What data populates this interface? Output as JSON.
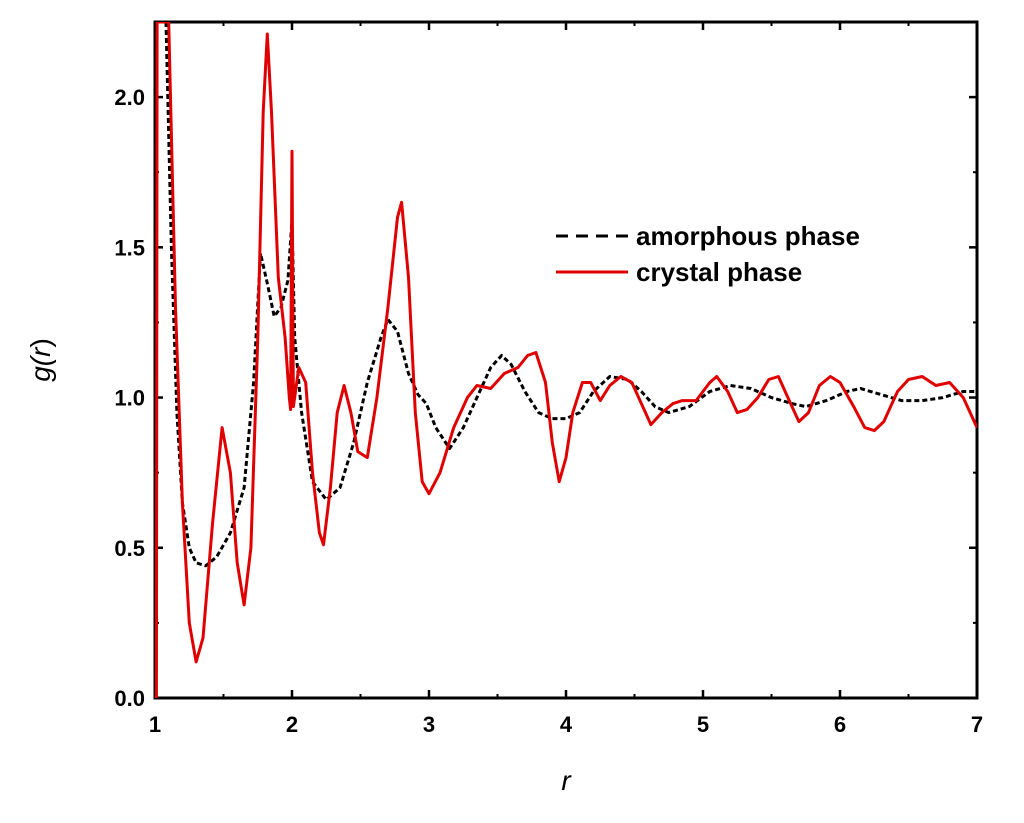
{
  "chart_data": {
    "type": "line",
    "title": "",
    "xlabel": "r",
    "ylabel": "g(r)",
    "xlim": [
      1,
      7
    ],
    "ylim": [
      0,
      2.25
    ],
    "x_ticks": [
      1,
      2,
      3,
      4,
      5,
      6,
      7
    ],
    "y_ticks": [
      0.0,
      0.5,
      1.0,
      1.5,
      2.0
    ],
    "x_tick_labels": [
      "1",
      "2",
      "3",
      "4",
      "5",
      "6",
      "7"
    ],
    "y_tick_labels": [
      "0.0",
      "0.5",
      "1.0",
      "1.5",
      "2.0"
    ],
    "grid": false,
    "legend_position": "center-right",
    "series": [
      {
        "name": "amorphous phase",
        "color": "#000000",
        "style": "dashed",
        "points": [
          [
            1.08,
            2.25
          ],
          [
            1.12,
            1.5
          ],
          [
            1.16,
            0.95
          ],
          [
            1.2,
            0.65
          ],
          [
            1.25,
            0.5
          ],
          [
            1.3,
            0.45
          ],
          [
            1.37,
            0.44
          ],
          [
            1.45,
            0.47
          ],
          [
            1.55,
            0.55
          ],
          [
            1.65,
            0.7
          ],
          [
            1.72,
            1.05
          ],
          [
            1.77,
            1.48
          ],
          [
            1.82,
            1.38
          ],
          [
            1.87,
            1.27
          ],
          [
            1.92,
            1.3
          ],
          [
            1.97,
            1.39
          ],
          [
            2.0,
            1.59
          ],
          [
            2.02,
            1.2
          ],
          [
            2.07,
            0.95
          ],
          [
            2.15,
            0.72
          ],
          [
            2.25,
            0.66
          ],
          [
            2.35,
            0.7
          ],
          [
            2.45,
            0.85
          ],
          [
            2.55,
            1.05
          ],
          [
            2.65,
            1.2
          ],
          [
            2.7,
            1.26
          ],
          [
            2.77,
            1.22
          ],
          [
            2.85,
            1.08
          ],
          [
            2.92,
            1.01
          ],
          [
            2.98,
            0.98
          ],
          [
            3.05,
            0.9
          ],
          [
            3.15,
            0.83
          ],
          [
            3.25,
            0.9
          ],
          [
            3.35,
            1.0
          ],
          [
            3.45,
            1.1
          ],
          [
            3.53,
            1.14
          ],
          [
            3.6,
            1.11
          ],
          [
            3.7,
            1.02
          ],
          [
            3.8,
            0.95
          ],
          [
            3.9,
            0.93
          ],
          [
            4.0,
            0.93
          ],
          [
            4.1,
            0.95
          ],
          [
            4.2,
            1.02
          ],
          [
            4.32,
            1.07
          ],
          [
            4.45,
            1.06
          ],
          [
            4.55,
            1.02
          ],
          [
            4.65,
            0.97
          ],
          [
            4.75,
            0.95
          ],
          [
            4.9,
            0.97
          ],
          [
            5.05,
            1.02
          ],
          [
            5.2,
            1.04
          ],
          [
            5.35,
            1.03
          ],
          [
            5.5,
            1.0
          ],
          [
            5.65,
            0.98
          ],
          [
            5.75,
            0.97
          ],
          [
            5.9,
            0.99
          ],
          [
            6.05,
            1.02
          ],
          [
            6.15,
            1.03
          ],
          [
            6.3,
            1.01
          ],
          [
            6.45,
            0.99
          ],
          [
            6.6,
            0.99
          ],
          [
            6.75,
            1.0
          ],
          [
            6.9,
            1.02
          ],
          [
            7.0,
            1.02
          ]
        ]
      },
      {
        "name": "crystal phase",
        "color": "#e00000",
        "style": "solid",
        "points": [
          [
            1.01,
            0.0
          ],
          [
            1.015,
            2.25
          ],
          [
            1.1,
            2.25
          ],
          [
            1.15,
            1.3
          ],
          [
            1.2,
            0.65
          ],
          [
            1.25,
            0.25
          ],
          [
            1.3,
            0.12
          ],
          [
            1.35,
            0.2
          ],
          [
            1.42,
            0.58
          ],
          [
            1.49,
            0.9
          ],
          [
            1.55,
            0.75
          ],
          [
            1.6,
            0.45
          ],
          [
            1.65,
            0.31
          ],
          [
            1.7,
            0.5
          ],
          [
            1.75,
            1.2
          ],
          [
            1.79,
            1.95
          ],
          [
            1.82,
            2.21
          ],
          [
            1.85,
            1.95
          ],
          [
            1.9,
            1.4
          ],
          [
            1.95,
            1.2
          ],
          [
            1.98,
            1.0
          ],
          [
            1.99,
            0.96
          ],
          [
            2.0,
            1.82
          ],
          [
            2.01,
            0.97
          ],
          [
            2.05,
            1.1
          ],
          [
            2.1,
            1.05
          ],
          [
            2.15,
            0.75
          ],
          [
            2.2,
            0.55
          ],
          [
            2.23,
            0.51
          ],
          [
            2.28,
            0.7
          ],
          [
            2.33,
            0.95
          ],
          [
            2.38,
            1.04
          ],
          [
            2.43,
            0.95
          ],
          [
            2.48,
            0.82
          ],
          [
            2.55,
            0.8
          ],
          [
            2.62,
            1.0
          ],
          [
            2.7,
            1.3
          ],
          [
            2.77,
            1.6
          ],
          [
            2.8,
            1.65
          ],
          [
            2.85,
            1.4
          ],
          [
            2.9,
            0.95
          ],
          [
            2.95,
            0.72
          ],
          [
            3.0,
            0.68
          ],
          [
            3.08,
            0.75
          ],
          [
            3.18,
            0.9
          ],
          [
            3.28,
            1.0
          ],
          [
            3.35,
            1.04
          ],
          [
            3.45,
            1.03
          ],
          [
            3.55,
            1.08
          ],
          [
            3.65,
            1.1
          ],
          [
            3.72,
            1.14
          ],
          [
            3.78,
            1.15
          ],
          [
            3.85,
            1.05
          ],
          [
            3.9,
            0.85
          ],
          [
            3.95,
            0.72
          ],
          [
            4.0,
            0.8
          ],
          [
            4.05,
            0.95
          ],
          [
            4.12,
            1.05
          ],
          [
            4.18,
            1.05
          ],
          [
            4.25,
            0.99
          ],
          [
            4.32,
            1.04
          ],
          [
            4.4,
            1.07
          ],
          [
            4.48,
            1.05
          ],
          [
            4.55,
            0.98
          ],
          [
            4.62,
            0.91
          ],
          [
            4.7,
            0.95
          ],
          [
            4.78,
            0.98
          ],
          [
            4.85,
            0.99
          ],
          [
            4.95,
            0.99
          ],
          [
            5.05,
            1.05
          ],
          [
            5.1,
            1.07
          ],
          [
            5.18,
            1.02
          ],
          [
            5.25,
            0.95
          ],
          [
            5.32,
            0.96
          ],
          [
            5.4,
            1.0
          ],
          [
            5.48,
            1.06
          ],
          [
            5.55,
            1.07
          ],
          [
            5.62,
            1.0
          ],
          [
            5.7,
            0.92
          ],
          [
            5.77,
            0.95
          ],
          [
            5.85,
            1.04
          ],
          [
            5.93,
            1.07
          ],
          [
            6.0,
            1.05
          ],
          [
            6.1,
            0.97
          ],
          [
            6.18,
            0.9
          ],
          [
            6.25,
            0.89
          ],
          [
            6.32,
            0.92
          ],
          [
            6.42,
            1.02
          ],
          [
            6.5,
            1.06
          ],
          [
            6.6,
            1.07
          ],
          [
            6.7,
            1.04
          ],
          [
            6.8,
            1.05
          ],
          [
            6.9,
            1.0
          ],
          [
            7.0,
            0.9
          ]
        ]
      }
    ]
  }
}
